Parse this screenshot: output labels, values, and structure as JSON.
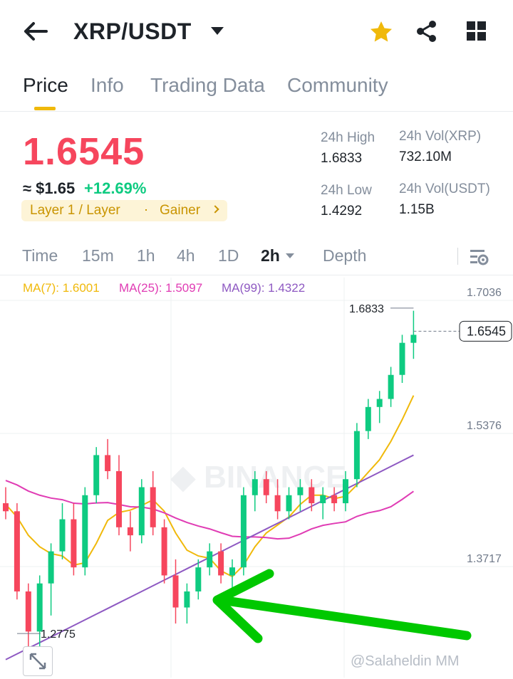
{
  "header": {
    "pair": "XRP/USDT",
    "icons": [
      "back-arrow-icon",
      "star-icon",
      "share-icon",
      "grid-icon"
    ],
    "star_color": "#f0b90b"
  },
  "tabs": [
    {
      "label": "Price",
      "active": true
    },
    {
      "label": "Info",
      "active": false
    },
    {
      "label": "Trading Data",
      "active": false
    },
    {
      "label": "Community",
      "active": false
    }
  ],
  "ticker": {
    "last_price": "1.6545",
    "usd_price": "≈ $1.65",
    "change": "+12.69%",
    "tag_category": "Layer 1 / Layer",
    "tag_status": "Gainer",
    "stats": {
      "high_label": "24h High",
      "high_value": "1.6833",
      "low_label": "24h Low",
      "low_value": "1.4292",
      "vol_xrp_label": "24h Vol(XRP)",
      "vol_xrp_value": "732.10M",
      "vol_usdt_label": "24h Vol(USDT)",
      "vol_usdt_value": "1.15B"
    },
    "colors": {
      "down": "#f6465d",
      "up": "#0ecb81",
      "accent": "#f0b90b"
    }
  },
  "timeframes": {
    "items": [
      "Time",
      "15m",
      "1h",
      "4h",
      "1D",
      "2h",
      "Depth"
    ],
    "selected": "2h"
  },
  "chart_data": {
    "type": "candlestick",
    "ma7": "MA(7): 1.6001",
    "ma25": "MA(25): 1.5097",
    "ma99": "MA(99): 1.4322",
    "ma_colors": {
      "ma7": "#f0b90b",
      "ma25": "#e03cb4",
      "ma99": "#8e59c2"
    },
    "y_ticks": [
      "1.7036",
      "1.5376",
      "1.3717"
    ],
    "y_tick_values": [
      1.7036,
      1.5376,
      1.3717
    ],
    "high_marker": "1.6833",
    "low_marker": "1.2775",
    "current_price": "1.6545",
    "annotation": "green arrow pointing to MA(99) support line",
    "candles": [
      [
        1.44,
        1.46,
        1.42,
        1.43
      ],
      [
        1.43,
        1.44,
        1.32,
        1.33
      ],
      [
        1.33,
        1.34,
        1.26,
        1.28
      ],
      [
        1.28,
        1.35,
        1.26,
        1.34
      ],
      [
        1.34,
        1.39,
        1.3,
        1.38
      ],
      [
        1.38,
        1.44,
        1.37,
        1.42
      ],
      [
        1.42,
        1.44,
        1.35,
        1.36
      ],
      [
        1.36,
        1.46,
        1.35,
        1.45
      ],
      [
        1.45,
        1.51,
        1.44,
        1.5
      ],
      [
        1.5,
        1.52,
        1.47,
        1.48
      ],
      [
        1.48,
        1.5,
        1.4,
        1.41
      ],
      [
        1.41,
        1.43,
        1.38,
        1.4
      ],
      [
        1.4,
        1.47,
        1.39,
        1.46
      ],
      [
        1.46,
        1.48,
        1.4,
        1.41
      ],
      [
        1.41,
        1.42,
        1.34,
        1.35
      ],
      [
        1.35,
        1.37,
        1.29,
        1.31
      ],
      [
        1.31,
        1.34,
        1.29,
        1.33
      ],
      [
        1.33,
        1.37,
        1.32,
        1.36
      ],
      [
        1.36,
        1.39,
        1.35,
        1.38
      ],
      [
        1.38,
        1.39,
        1.34,
        1.35
      ],
      [
        1.35,
        1.37,
        1.33,
        1.36
      ],
      [
        1.36,
        1.46,
        1.35,
        1.45
      ],
      [
        1.45,
        1.48,
        1.43,
        1.47
      ],
      [
        1.47,
        1.48,
        1.44,
        1.45
      ],
      [
        1.45,
        1.47,
        1.42,
        1.43
      ],
      [
        1.43,
        1.46,
        1.42,
        1.45
      ],
      [
        1.45,
        1.47,
        1.43,
        1.46
      ],
      [
        1.46,
        1.47,
        1.43,
        1.44
      ],
      [
        1.44,
        1.46,
        1.42,
        1.45
      ],
      [
        1.45,
        1.46,
        1.43,
        1.44
      ],
      [
        1.44,
        1.48,
        1.43,
        1.47
      ],
      [
        1.47,
        1.54,
        1.46,
        1.53
      ],
      [
        1.53,
        1.57,
        1.52,
        1.56
      ],
      [
        1.56,
        1.58,
        1.54,
        1.57
      ],
      [
        1.57,
        1.61,
        1.56,
        1.6
      ],
      [
        1.6,
        1.65,
        1.59,
        1.64
      ],
      [
        1.64,
        1.68,
        1.62,
        1.65
      ]
    ]
  },
  "watermark": "@Salaheldin MM"
}
